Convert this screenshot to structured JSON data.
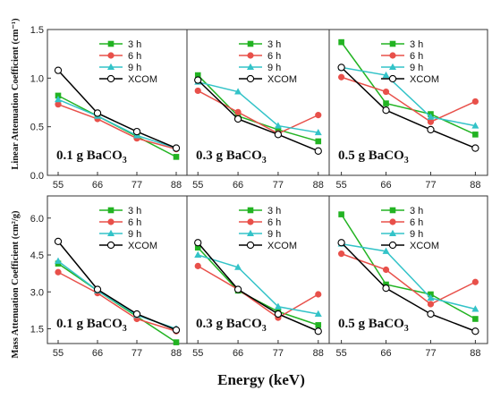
{
  "figure": {
    "xlabel": "Energy (keV)",
    "ylabel_top": "Linear Attenuation Coefficient (cm⁻¹)",
    "ylabel_bottom": "Mass Attenuation Coefficient (cm²/g)"
  },
  "colors": {
    "3 h": "#22b322",
    "6 h": "#e8504a",
    "9 h": "#33c3c8",
    "XCOM": "#000000"
  },
  "chart_data": [
    {
      "type": "line",
      "row": "top",
      "col": 0,
      "annotation": "0.1 g BaCO",
      "annotation_sub": "3",
      "x": [
        55,
        66,
        77,
        88
      ],
      "ylim": [
        0,
        1.5
      ],
      "yticks": [
        0.0,
        0.5,
        1.0,
        1.5
      ],
      "series": [
        {
          "name": "3 h",
          "marker": "square",
          "values": [
            0.82,
            0.61,
            0.4,
            0.19
          ]
        },
        {
          "name": "6 h",
          "marker": "circle",
          "values": [
            0.73,
            0.58,
            0.38,
            0.27
          ]
        },
        {
          "name": "9 h",
          "marker": "triangle",
          "values": [
            0.78,
            0.61,
            0.41,
            0.28
          ]
        },
        {
          "name": "XCOM",
          "marker": "open-circle",
          "values": [
            1.08,
            0.64,
            0.45,
            0.28
          ]
        }
      ]
    },
    {
      "type": "line",
      "row": "top",
      "col": 1,
      "annotation": "0.3 g BaCO",
      "annotation_sub": "3",
      "x": [
        55,
        66,
        77,
        88
      ],
      "ylim": [
        0,
        1.5
      ],
      "series": [
        {
          "name": "3 h",
          "marker": "square",
          "values": [
            1.03,
            0.61,
            0.47,
            0.35
          ]
        },
        {
          "name": "6 h",
          "marker": "circle",
          "values": [
            0.87,
            0.65,
            0.43,
            0.62
          ]
        },
        {
          "name": "9 h",
          "marker": "triangle",
          "values": [
            0.96,
            0.86,
            0.51,
            0.44
          ]
        },
        {
          "name": "XCOM",
          "marker": "open-circle",
          "values": [
            0.98,
            0.58,
            0.42,
            0.25
          ]
        }
      ]
    },
    {
      "type": "line",
      "row": "top",
      "col": 2,
      "annotation": "0.5 g BaCO",
      "annotation_sub": "3",
      "x": [
        55,
        66,
        77,
        88
      ],
      "ylim": [
        0,
        1.5
      ],
      "series": [
        {
          "name": "3 h",
          "marker": "square",
          "values": [
            1.37,
            0.74,
            0.63,
            0.42
          ]
        },
        {
          "name": "6 h",
          "marker": "circle",
          "values": [
            1.01,
            0.86,
            0.55,
            0.76
          ]
        },
        {
          "name": "9 h",
          "marker": "triangle",
          "values": [
            1.11,
            1.03,
            0.6,
            0.51
          ]
        },
        {
          "name": "XCOM",
          "marker": "open-circle",
          "values": [
            1.11,
            0.67,
            0.47,
            0.28
          ]
        }
      ]
    },
    {
      "type": "line",
      "row": "bottom",
      "col": 0,
      "annotation": "0.1 g BaCO",
      "annotation_sub": "3",
      "x": [
        55,
        66,
        77,
        88
      ],
      "ylim": [
        0.9,
        6.9
      ],
      "yticks": [
        1.5,
        3.0,
        4.5,
        6.0
      ],
      "series": [
        {
          "name": "3 h",
          "marker": "square",
          "values": [
            4.15,
            3.05,
            2.0,
            0.95
          ]
        },
        {
          "name": "6 h",
          "marker": "circle",
          "values": [
            3.8,
            2.95,
            1.9,
            1.4
          ]
        },
        {
          "name": "9 h",
          "marker": "triangle",
          "values": [
            4.25,
            3.05,
            2.05,
            1.5
          ]
        },
        {
          "name": "XCOM",
          "marker": "open-circle",
          "values": [
            5.05,
            3.1,
            2.1,
            1.45
          ]
        }
      ]
    },
    {
      "type": "line",
      "row": "bottom",
      "col": 1,
      "annotation": "0.3 g BaCO",
      "annotation_sub": "3",
      "x": [
        55,
        66,
        77,
        88
      ],
      "ylim": [
        0.9,
        6.9
      ],
      "series": [
        {
          "name": "3 h",
          "marker": "square",
          "values": [
            4.8,
            3.05,
            2.2,
            1.65
          ]
        },
        {
          "name": "6 h",
          "marker": "circle",
          "values": [
            4.05,
            3.1,
            1.95,
            2.9
          ]
        },
        {
          "name": "9 h",
          "marker": "triangle",
          "values": [
            4.5,
            4.0,
            2.4,
            2.1
          ]
        },
        {
          "name": "XCOM",
          "marker": "open-circle",
          "values": [
            5.0,
            3.1,
            2.1,
            1.4
          ]
        }
      ]
    },
    {
      "type": "line",
      "row": "bottom",
      "col": 2,
      "annotation": "0.5 g BaCO",
      "annotation_sub": "3",
      "x": [
        55,
        66,
        77,
        88
      ],
      "ylim": [
        0.9,
        6.9
      ],
      "series": [
        {
          "name": "3 h",
          "marker": "square",
          "values": [
            6.15,
            3.3,
            2.9,
            1.9
          ]
        },
        {
          "name": "6 h",
          "marker": "circle",
          "values": [
            4.55,
            3.9,
            2.5,
            3.4
          ]
        },
        {
          "name": "9 h",
          "marker": "triangle",
          "values": [
            4.95,
            4.65,
            2.75,
            2.3
          ]
        },
        {
          "name": "XCOM",
          "marker": "open-circle",
          "values": [
            5.0,
            3.15,
            2.1,
            1.4
          ]
        }
      ]
    }
  ]
}
